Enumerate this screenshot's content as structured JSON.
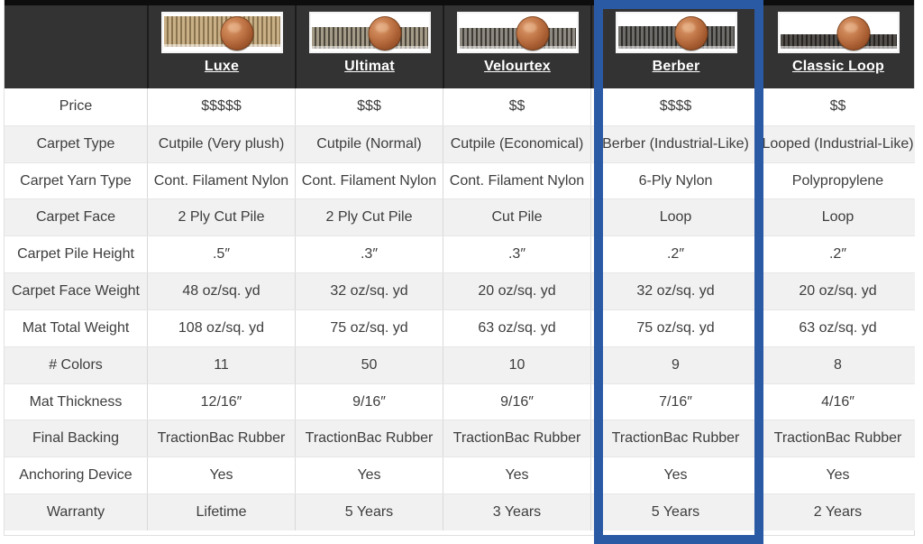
{
  "table": {
    "corner_label": "",
    "products": [
      {
        "name": "Luxe",
        "swatch": {
          "alt": "Luxe cutpile carpet sample with penny",
          "band_top": "8",
          "band_height": "80",
          "pile_color": "#c9b086",
          "texture_color": "#8a7450"
        }
      },
      {
        "name": "Ultimat",
        "swatch": {
          "alt": "Ultimat cutpile carpet sample with penny",
          "band_top": "36",
          "band_height": "56",
          "pile_color": "#a39a88",
          "texture_color": "#4d473c"
        }
      },
      {
        "name": "Velourtex",
        "swatch": {
          "alt": "Velourtex cutpile carpet sample with penny",
          "band_top": "38",
          "band_height": "54",
          "pile_color": "#8e8a82",
          "texture_color": "#3f3c36"
        }
      },
      {
        "name": "Berber",
        "swatch": {
          "alt": "Berber loop carpet sample with penny",
          "band_top": "34",
          "band_height": "58",
          "pile_color": "#6e6c68",
          "texture_color": "#2e2c2a"
        }
      },
      {
        "name": "Classic Loop",
        "swatch": {
          "alt": "Classic Loop carpet sample with penny",
          "band_top": "55",
          "band_height": "38",
          "pile_color": "#53504c",
          "texture_color": "#262422"
        }
      }
    ],
    "rows": [
      {
        "label": "Price",
        "values": [
          "$$$$$",
          "$$$",
          "$$",
          "$$$$",
          "$$"
        ]
      },
      {
        "label": "Carpet Type",
        "values": [
          "Cutpile (Very plush)",
          "Cutpile (Normal)",
          "Cutpile (Economical)",
          "Berber (Industrial-Like)",
          "Looped (Industrial-Like)"
        ]
      },
      {
        "label": "Carpet Yarn Type",
        "values": [
          "Cont. Filament Nylon",
          "Cont. Filament Nylon",
          "Cont. Filament Nylon",
          "6-Ply Nylon",
          "Polypropylene"
        ]
      },
      {
        "label": "Carpet Face",
        "values": [
          "2 Ply Cut Pile",
          "2 Ply Cut Pile",
          "Cut Pile",
          "Loop",
          "Loop"
        ]
      },
      {
        "label": "Carpet Pile Height",
        "values": [
          ".5″",
          ".3″",
          ".3″",
          ".2″",
          ".2″"
        ]
      },
      {
        "label": "Carpet Face Weight",
        "values": [
          "48 oz/sq. yd",
          "32 oz/sq. yd",
          "20 oz/sq. yd",
          "32 oz/sq. yd",
          "20 oz/sq. yd"
        ]
      },
      {
        "label": "Mat Total Weight",
        "values": [
          "108 oz/sq. yd",
          "75 oz/sq. yd",
          "63 oz/sq. yd",
          "75 oz/sq. yd",
          "63 oz/sq. yd"
        ]
      },
      {
        "label": "# Colors",
        "values": [
          "11",
          "50",
          "10",
          "9",
          "8"
        ]
      },
      {
        "label": "Mat Thickness",
        "values": [
          "12/16″",
          "9/16″",
          "9/16″",
          "7/16″",
          "4/16″"
        ]
      },
      {
        "label": "Final Backing",
        "values": [
          "TractionBac Rubber",
          "TractionBac Rubber",
          "TractionBac Rubber",
          "TractionBac Rubber",
          "TractionBac Rubber"
        ]
      },
      {
        "label": "Anchoring Device",
        "values": [
          "Yes",
          "Yes",
          "Yes",
          "Yes",
          "Yes"
        ]
      },
      {
        "label": "Warranty",
        "values": [
          "Lifetime",
          "5 Years",
          "3 Years",
          "5 Years",
          "2 Years"
        ]
      }
    ],
    "highlight": {
      "product": "Berber",
      "color": "#2b5aa5"
    }
  },
  "colors": {
    "header_bg": "#333333",
    "header_top_bar": "#0d0d0d",
    "row_alt_bg": "#f1f1f1",
    "cell_border": "#d9d9d9",
    "text": "#3d3d3d",
    "penny": "#b06a3c"
  }
}
